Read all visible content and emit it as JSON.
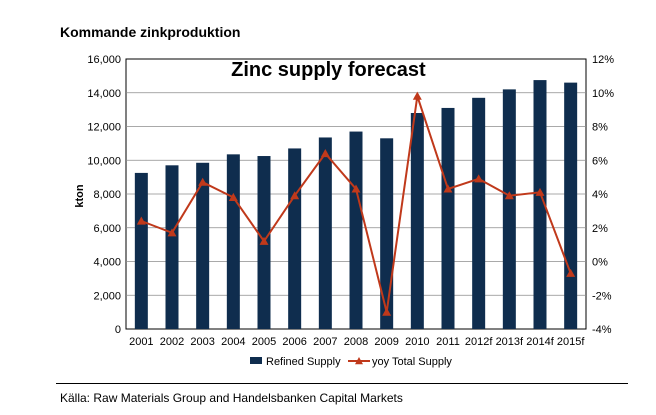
{
  "heading": "Kommande zinkproduktion",
  "source": "Källa: Raw Materials Group and Handelsbanken Capital Markets",
  "chart_data": {
    "type": "bar",
    "title": "Zinc supply forecast",
    "ylabel": "kton",
    "ylim": [
      0,
      16000
    ],
    "y2lim": [
      -4,
      12
    ],
    "yticks": [
      "0",
      "2,000",
      "4,000",
      "6,000",
      "8,000",
      "10,000",
      "12,000",
      "14,000",
      "16,000"
    ],
    "y2ticks": [
      "-4%",
      "-2%",
      "0%",
      "2%",
      "4%",
      "6%",
      "8%",
      "10%",
      "12%"
    ],
    "categories": [
      "2001",
      "2002",
      "2003",
      "2004",
      "2005",
      "2006",
      "2007",
      "2008",
      "2009",
      "2010",
      "2011",
      "2012f",
      "2013f",
      "2014f",
      "2015f"
    ],
    "grid": true,
    "legend_position": "bottom",
    "series": [
      {
        "name": "Refined Supply",
        "type": "bar",
        "axis": "left",
        "color": "#0f2d4e",
        "values": [
          9250,
          9700,
          9850,
          10350,
          10250,
          10700,
          11350,
          11700,
          11300,
          12800,
          13100,
          13700,
          14200,
          14750,
          14600
        ]
      },
      {
        "name": "yoy Total Supply",
        "type": "line",
        "axis": "right",
        "color": "#c0391b",
        "values": [
          2.4,
          1.7,
          4.7,
          3.8,
          1.2,
          3.9,
          6.4,
          4.3,
          -3.0,
          9.8,
          4.3,
          4.9,
          3.9,
          4.1,
          -0.7
        ]
      }
    ]
  }
}
